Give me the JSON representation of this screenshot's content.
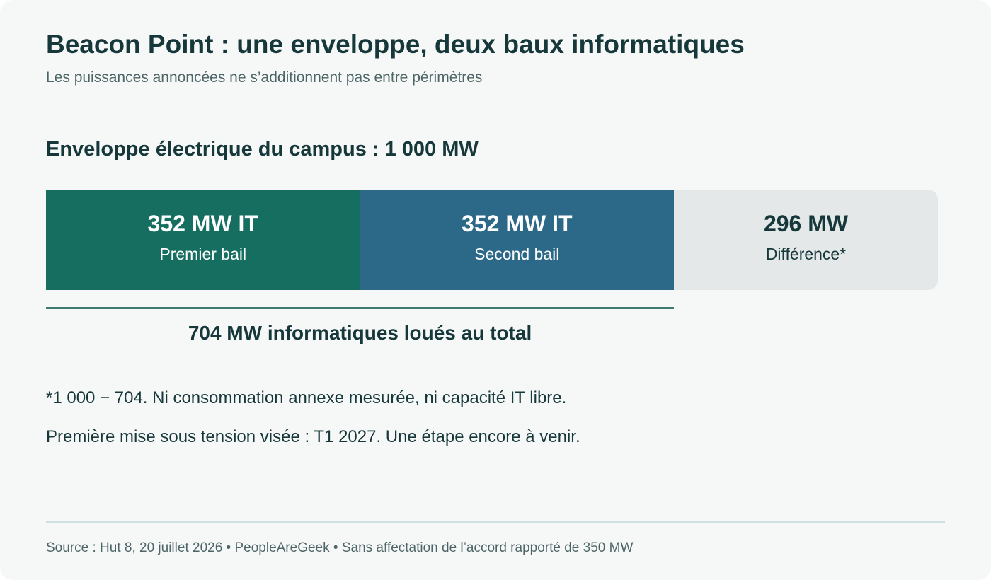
{
  "header": {
    "title": "Beacon Point : une enveloppe, deux baux informatiques",
    "subtitle": "Les puissances annoncées ne s’additionnent pas entre périmètres"
  },
  "section_heading": "Enveloppe électrique du campus : 1 000 MW",
  "chart_data": {
    "type": "bar",
    "orientation": "horizontal-stacked",
    "total": 1000,
    "unit": "MW",
    "segments": [
      {
        "value_label": "352 MW IT",
        "label": "Premier bail",
        "value": 352,
        "color": "#166e61",
        "text_style": "dark"
      },
      {
        "value_label": "352 MW IT",
        "label": "Second bail",
        "value": 352,
        "color": "#2c6989",
        "text_style": "dark"
      },
      {
        "value_label": "296 MW",
        "label": "Différence*",
        "value": 296,
        "color": "#e4e8e8",
        "text_style": "light"
      }
    ],
    "bracket": {
      "value": 704,
      "label": "704 MW informatiques loués au total"
    }
  },
  "notes": {
    "note_1": "*1 000 − 704. Ni consommation annexe mesurée, ni capacité IT libre.",
    "note_2": "Première mise sous tension visée : T1 2027. Une étape encore à venir."
  },
  "footer": {
    "source": "Source : Hut 8, 20 juillet 2026 • PeopleAreGeek • Sans affectation de l’accord rapporté de 350 MW"
  }
}
